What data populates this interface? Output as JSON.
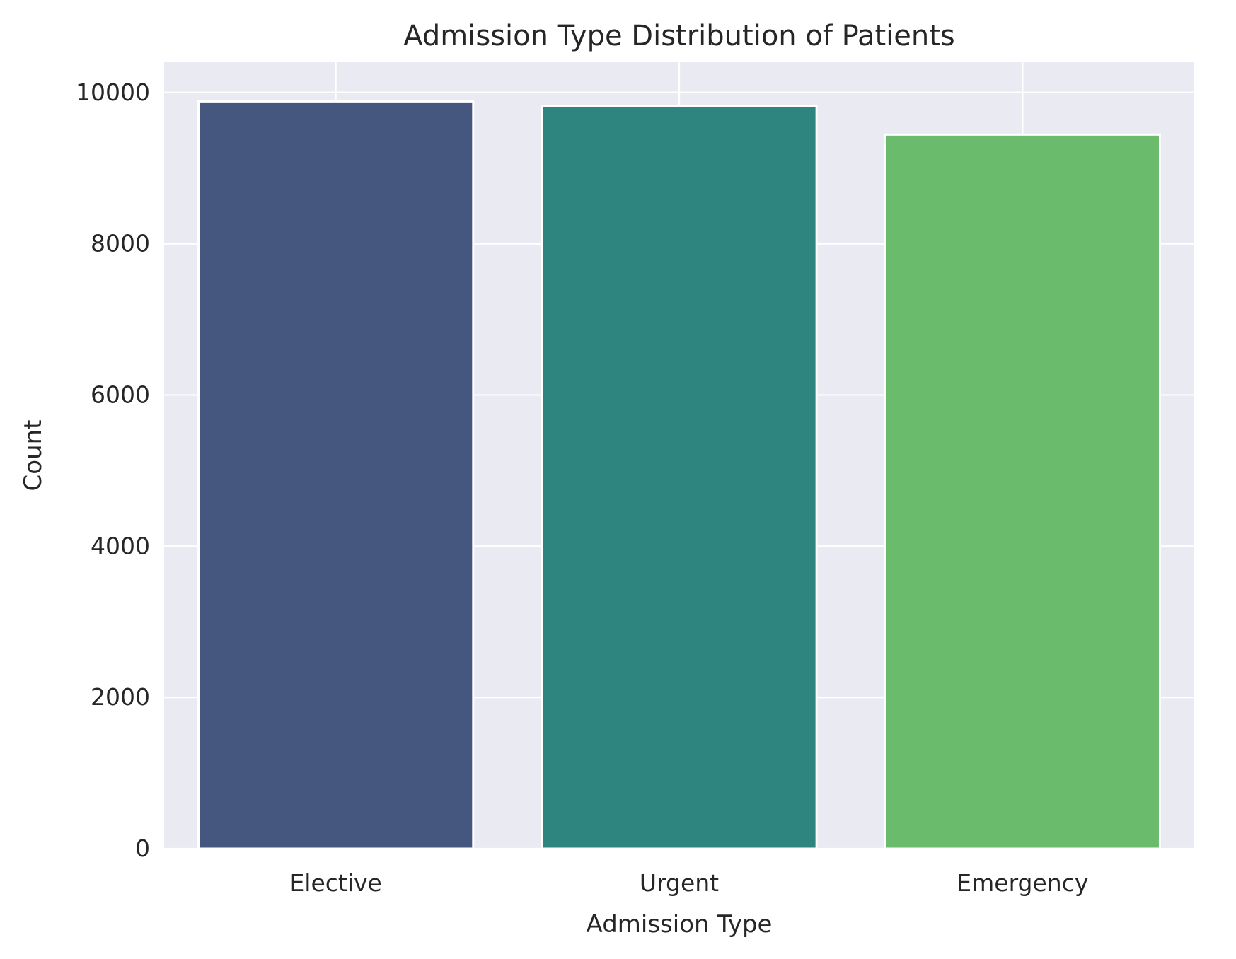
{
  "chart_data": {
    "type": "bar",
    "title": "Admission Type Distribution of Patients",
    "xlabel": "Admission Type",
    "ylabel": "Count",
    "categories": [
      "Elective",
      "Urgent",
      "Emergency"
    ],
    "values": [
      9882,
      9825,
      9443
    ],
    "colors": [
      "#46577f",
      "#2e847e",
      "#6bbb6d"
    ],
    "ylim": [
      0,
      10400
    ],
    "yticks": [
      0,
      2000,
      4000,
      6000,
      8000,
      10000
    ],
    "ytick_labels": [
      "0",
      "2000",
      "4000",
      "6000",
      "8000",
      "10000"
    ],
    "grid": true,
    "legend": "none",
    "background_color": "#eaeaf2",
    "grid_color": "#ffffff"
  }
}
